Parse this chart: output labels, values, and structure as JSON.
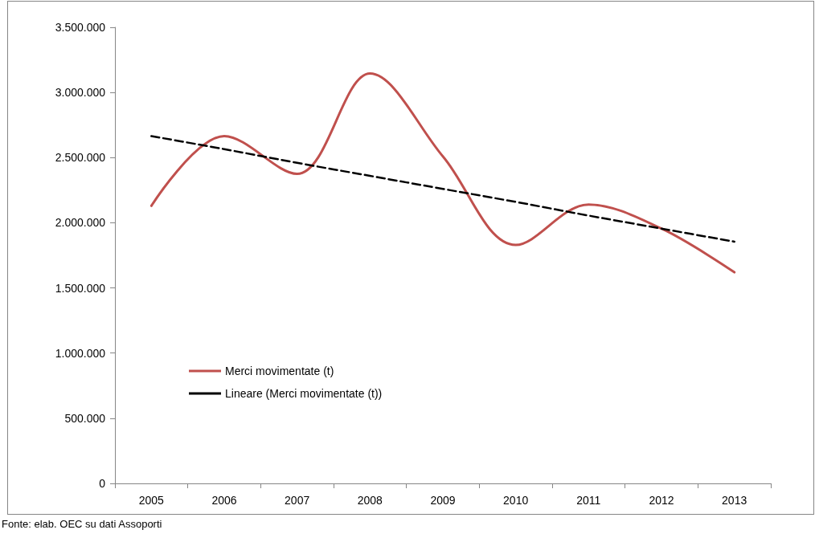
{
  "chart_data": {
    "type": "line",
    "categories": [
      "2005",
      "2006",
      "2007",
      "2008",
      "2009",
      "2010",
      "2011",
      "2012",
      "2013"
    ],
    "series": [
      {
        "name": "Merci movimentate (t)",
        "color": "#c0504d",
        "values": [
          2130000,
          2665000,
          2375000,
          3145000,
          2510000,
          1830000,
          2140000,
          1955000,
          1620000
        ]
      },
      {
        "name": "Lineare (Merci movimentate (t))",
        "color": "#000000",
        "line_style": "dashed",
        "values": [
          2665000,
          2565000,
          2460000,
          2360000,
          2260000,
          2160000,
          2055000,
          1955000,
          1855000
        ]
      }
    ],
    "ylim": [
      0,
      3500000
    ],
    "yticks": [
      {
        "value": 0,
        "label": "0"
      },
      {
        "value": 500000,
        "label": "500.000"
      },
      {
        "value": 1000000,
        "label": "1.000.000"
      },
      {
        "value": 1500000,
        "label": "1.500.000"
      },
      {
        "value": 2000000,
        "label": "2.000.000"
      },
      {
        "value": 2500000,
        "label": "2.500.000"
      },
      {
        "value": 3000000,
        "label": "3.000.000"
      },
      {
        "value": 3500000,
        "label": "3.500.000"
      }
    ],
    "grid": false,
    "legend": "bottom left",
    "marker": "none",
    "annotations": [
      "Fonte: elab. OEC su dati Assoporti"
    ]
  }
}
